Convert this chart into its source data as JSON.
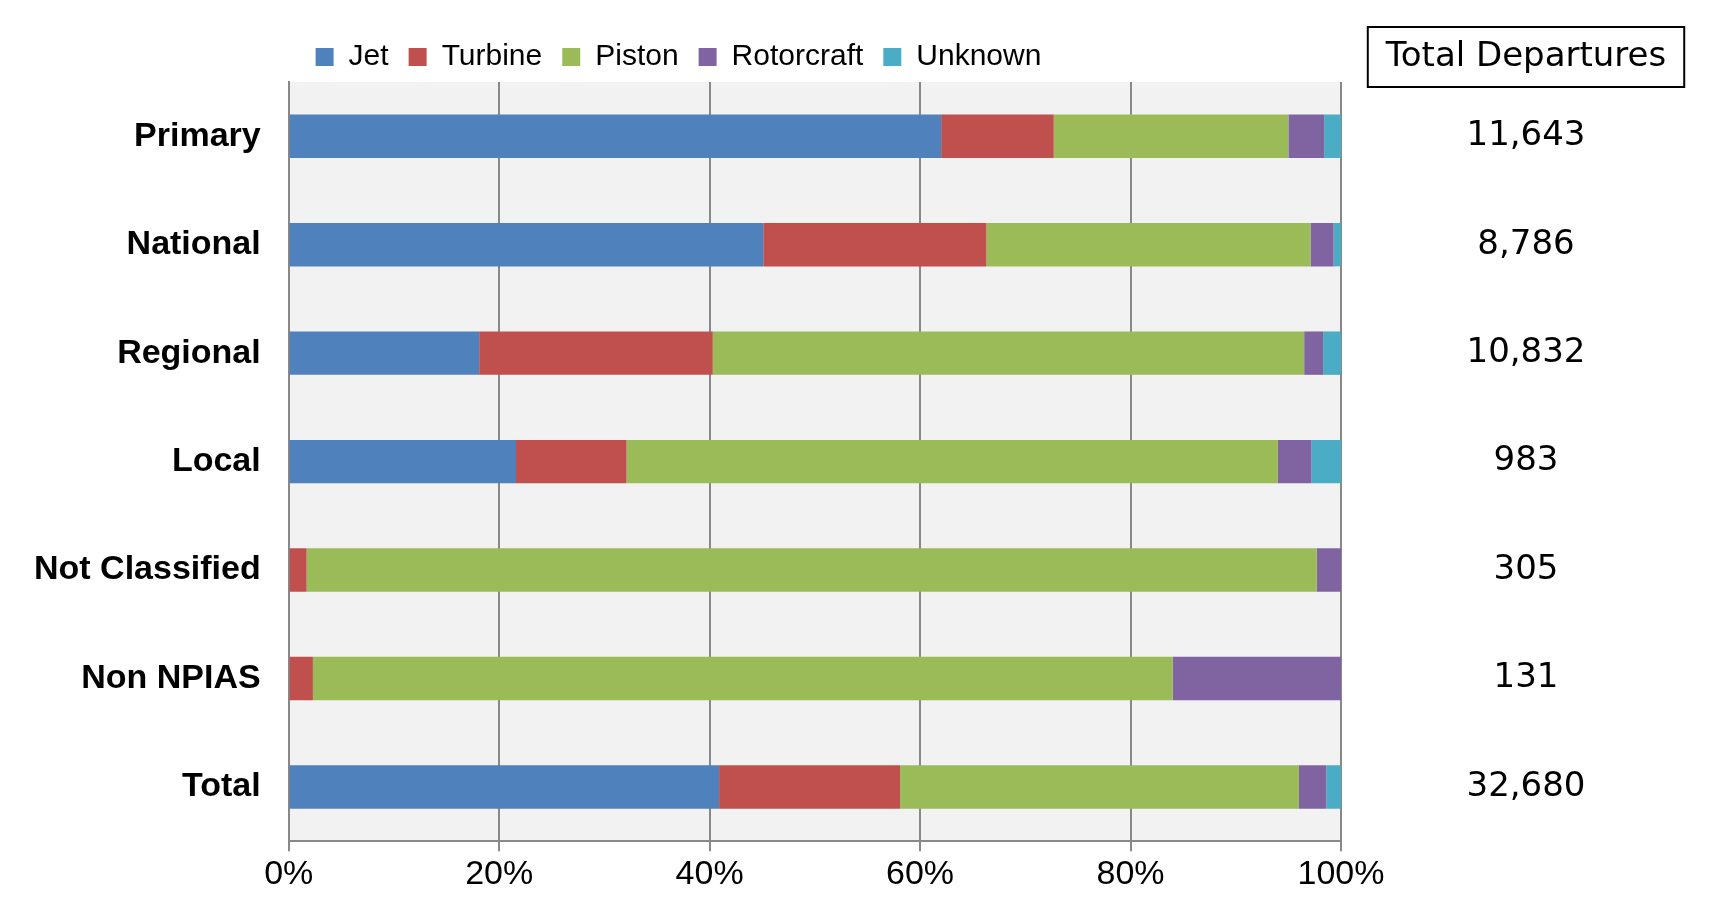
{
  "chart_data": {
    "type": "bar",
    "orientation": "horizontal",
    "stacked": true,
    "categories": [
      "Primary",
      "National",
      "Regional",
      "Local",
      "Not Classified",
      "Non NPIAS",
      "Total"
    ],
    "series": [
      {
        "name": "Jet",
        "color": "#4f81bd",
        "values": [
          62.0,
          45.1,
          18.1,
          21.6,
          0,
          0,
          40.9
        ]
      },
      {
        "name": "Turbine",
        "color": "#c0504d",
        "values": [
          10.7,
          21.2,
          22.2,
          10.5,
          1.7,
          2.3,
          17.2
        ]
      },
      {
        "name": "Piston",
        "color": "#9bbb59",
        "values": [
          22.3,
          30.8,
          56.2,
          61.9,
          96.0,
          81.7,
          37.9
        ]
      },
      {
        "name": "Rotorcraft",
        "color": "#8064a2",
        "values": [
          3.4,
          2.2,
          1.8,
          3.2,
          2.3,
          16.0,
          2.6
        ]
      },
      {
        "name": "Unknown",
        "color": "#4bacc6",
        "values": [
          1.6,
          0.7,
          1.7,
          2.8,
          0,
          0,
          1.4
        ]
      }
    ],
    "xlim": [
      0,
      100
    ],
    "xticks": [
      {
        "value": 0,
        "label": "0%"
      },
      {
        "value": 20,
        "label": "20%"
      },
      {
        "value": 40,
        "label": "40%"
      },
      {
        "value": 60,
        "label": "60%"
      },
      {
        "value": 80,
        "label": "80%"
      },
      {
        "value": 100,
        "label": "100%"
      }
    ],
    "annotations": [
      "Total Departures",
      "11,643",
      "8,786",
      "10,832",
      "983",
      "305",
      "131",
      "32,680"
    ],
    "grid": "x",
    "legend": "top"
  }
}
